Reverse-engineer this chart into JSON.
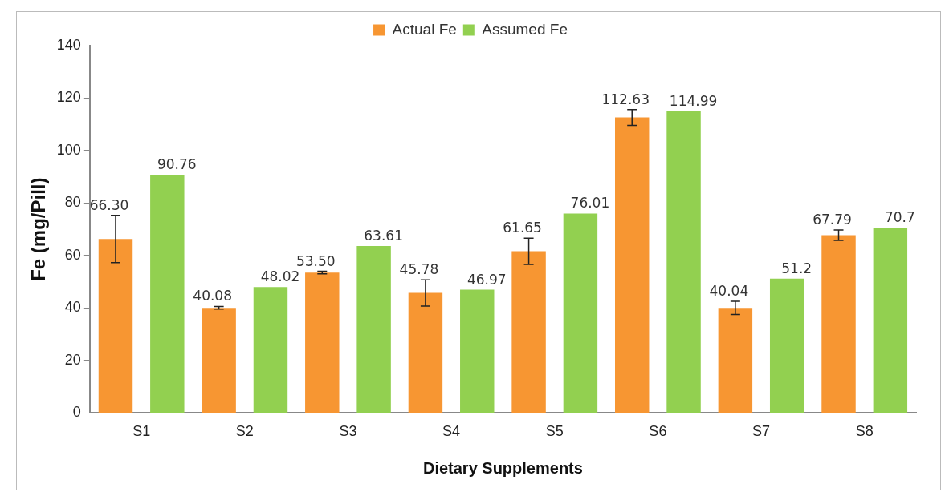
{
  "chart_data": {
    "type": "bar",
    "xlabel": "Dietary Supplements",
    "ylabel": "Fe (mg/Pill)",
    "categories": [
      "S1",
      "S2",
      "S3",
      "S4",
      "S5",
      "S6",
      "S7",
      "S8"
    ],
    "series": [
      {
        "name": "Actual Fe",
        "color": "#f79632",
        "values": [
          66.3,
          40.08,
          53.5,
          45.78,
          61.65,
          112.63,
          40.04,
          67.79
        ],
        "errors": [
          9,
          0.5,
          0.5,
          5,
          5,
          3,
          2.5,
          2
        ],
        "value_labels": [
          "66.30",
          "40.08",
          "53.50",
          "45.78",
          "61.65",
          "112.63",
          "40.04",
          "67.79"
        ]
      },
      {
        "name": "Assumed Fe",
        "color": "#92d050",
        "values": [
          90.76,
          48.02,
          63.61,
          46.97,
          76.01,
          114.99,
          51.2,
          70.7
        ],
        "value_labels": [
          "90.76",
          "48.02",
          "63.61",
          "46.97",
          "76.01",
          "114.99",
          "51.2",
          "70.7"
        ]
      }
    ],
    "ylim": [
      0,
      140
    ],
    "yticks": [
      0,
      20,
      40,
      60,
      80,
      100,
      120,
      140
    ],
    "grid": false,
    "legend": "top"
  }
}
